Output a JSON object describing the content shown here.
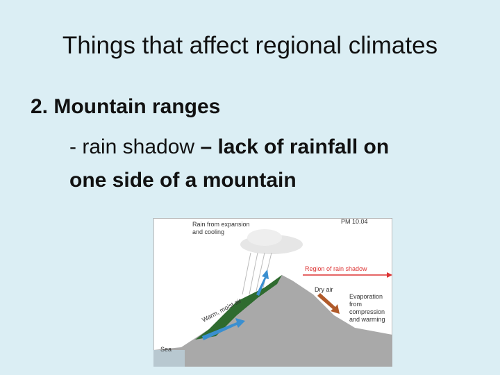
{
  "slide": {
    "title": "Things that affect regional climates",
    "heading": "2. Mountain ranges",
    "bullet": {
      "term": "- rain shadow ",
      "definition_lines": [
        "– lack of rainfall on",
        "one side of a mountain"
      ]
    },
    "diagram": {
      "tag": "PM 10.04",
      "rain_label": [
        "Rain from expansion",
        "and cooling"
      ],
      "shadow_label": "Region of rain shadow",
      "dry_air": "Dry air",
      "evaporation_label": [
        "Evaporation",
        "from",
        "compression",
        "and warming"
      ],
      "moist_air": "Warm, moist air",
      "sea": "Sea"
    }
  }
}
